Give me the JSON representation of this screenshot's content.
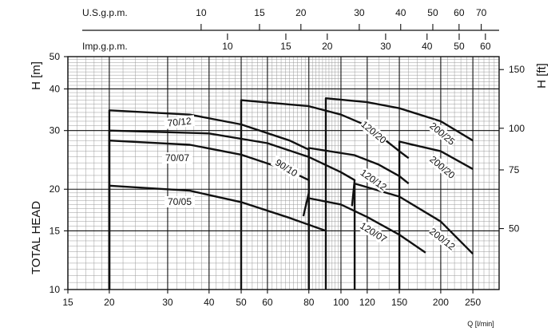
{
  "chart_data": {
    "type": "line",
    "title": "",
    "x_scale": "log",
    "y_scale": "log",
    "xlabel": "Q [l/min]",
    "ylabel": "TOTAL HEAD",
    "y_left_label": "H [m]",
    "y_right_label": "H [ft]",
    "xlim": [
      15,
      300
    ],
    "ylim": [
      10,
      50
    ],
    "grid": true,
    "x_ticks": [
      15,
      20,
      30,
      40,
      50,
      60,
      80,
      100,
      120,
      150,
      200,
      250
    ],
    "x_tick_labels": [
      "15",
      "20",
      "30",
      "40",
      "50",
      "60",
      "80",
      "100",
      "120",
      "150",
      "200",
      "250"
    ],
    "y_ticks": [
      10,
      15,
      20,
      30,
      40,
      50
    ],
    "y_tick_labels": [
      "10",
      "15",
      "20",
      "30",
      "40",
      "50"
    ],
    "y_right_ticks": [
      50,
      75,
      100,
      150
    ],
    "y_right_tick_labels": [
      "50",
      "75",
      "100",
      "150"
    ],
    "top_axis_us": {
      "label": "U.S.g.p.m.",
      "ticks": [
        10,
        15,
        20,
        30,
        40,
        50,
        60,
        70
      ],
      "tick_labels": [
        "10",
        "15",
        "20",
        "30",
        "40",
        "50",
        "60",
        "70"
      ]
    },
    "top_axis_imp": {
      "label": "Imp.g.p.m.",
      "ticks": [
        10,
        15,
        20,
        30,
        40,
        50,
        60
      ],
      "tick_labels": [
        "10",
        "15",
        "20",
        "30",
        "40",
        "50",
        "60"
      ]
    },
    "series": [
      {
        "name": "70/05",
        "x": [
          20,
          20,
          35,
          50,
          70,
          90
        ],
        "y": [
          10,
          20.5,
          19.8,
          18.3,
          16.4,
          15.0
        ]
      },
      {
        "name": "70/07",
        "x": [
          20,
          20,
          35,
          50,
          70,
          80,
          80,
          77
        ],
        "y": [
          10,
          28.0,
          27.2,
          25.4,
          22.7,
          21.3,
          19.5,
          16.6
        ]
      },
      {
        "name": "70/12",
        "x": [
          20,
          20,
          35,
          50,
          70,
          80
        ],
        "y": [
          10,
          34.5,
          33.5,
          31.3,
          28.0,
          26.3
        ]
      },
      {
        "name": "90/10",
        "x": [
          20,
          20,
          40,
          60,
          80,
          100,
          110,
          108
        ],
        "y": [
          10,
          30.0,
          29.4,
          27.5,
          25.0,
          22.5,
          21.3,
          17.8
        ]
      },
      {
        "name": "120/07",
        "x": [
          80,
          80,
          100,
          120,
          150,
          180
        ],
        "y": [
          10,
          18.8,
          18.0,
          16.5,
          14.6,
          12.9
        ]
      },
      {
        "name": "120/12",
        "x": [
          80,
          80,
          110,
          130,
          150,
          160
        ],
        "y": [
          10,
          26.6,
          25.3,
          23.7,
          21.9,
          20.8
        ]
      },
      {
        "name": "120/20",
        "x": [
          50,
          50,
          80,
          100,
          120,
          150,
          160
        ],
        "y": [
          10,
          37.0,
          35.5,
          33.5,
          31.0,
          26.0,
          24.8
        ]
      },
      {
        "name": "200/12",
        "x": [
          110,
          110,
          150,
          200,
          250
        ],
        "y": [
          10,
          20.8,
          19.0,
          16.0,
          12.8
        ]
      },
      {
        "name": "200/20",
        "x": [
          150,
          150,
          200,
          250
        ],
        "y": [
          10,
          27.8,
          26.0,
          23.0
        ]
      },
      {
        "name": "200/25",
        "x": [
          90,
          90,
          120,
          150,
          200,
          250
        ],
        "y": [
          10,
          37.5,
          36.5,
          35.0,
          32.0,
          28.0
        ]
      }
    ],
    "labels": [
      "70/12",
      "70/07",
      "70/05",
      "90/10",
      "120/20",
      "120/12",
      "120/07",
      "200/25",
      "200/20",
      "200/12"
    ]
  }
}
